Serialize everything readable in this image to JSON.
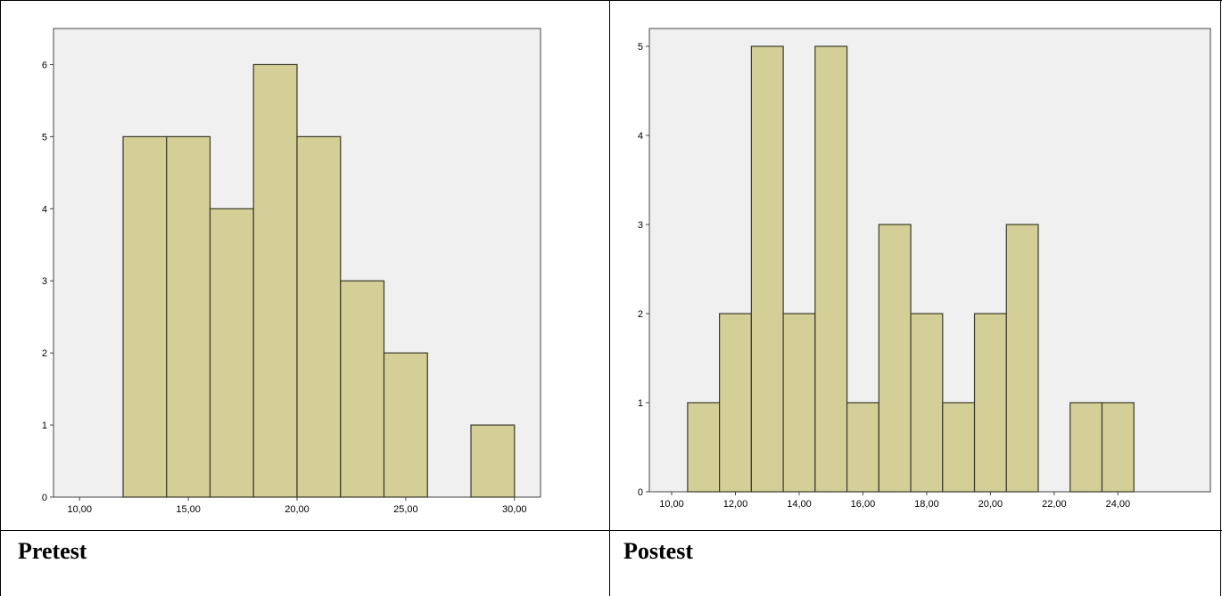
{
  "captions": {
    "left": "Pretest",
    "right": "Postest"
  },
  "colors": {
    "plot_bg": "#f0f0f0",
    "bar_fill": "#d4cf96",
    "bar_stroke": "#3a3a2a",
    "axis": "#444444"
  },
  "chart_data": [
    {
      "type": "bar",
      "name": "pretest-histogram",
      "x_ticks": [
        10,
        15,
        20,
        25,
        30
      ],
      "x_tick_labels": [
        "10,00",
        "15,00",
        "20,00",
        "25,00",
        "30,00"
      ],
      "y_ticks": [
        0,
        1,
        2,
        3,
        4,
        5,
        6
      ],
      "y_tick_labels": [
        "0",
        "1",
        "2",
        "3",
        "4",
        "5",
        "6"
      ],
      "xlim": [
        8.8,
        31.2
      ],
      "ylim": [
        0,
        6.5
      ],
      "bins": [
        {
          "x0": 12,
          "x1": 14,
          "count": 5
        },
        {
          "x0": 14,
          "x1": 16,
          "count": 5
        },
        {
          "x0": 16,
          "x1": 18,
          "count": 4
        },
        {
          "x0": 18,
          "x1": 20,
          "count": 6
        },
        {
          "x0": 20,
          "x1": 22,
          "count": 5
        },
        {
          "x0": 22,
          "x1": 24,
          "count": 3
        },
        {
          "x0": 24,
          "x1": 26,
          "count": 2
        },
        {
          "x0": 28,
          "x1": 30,
          "count": 1
        }
      ],
      "grid": false,
      "legend": "none"
    },
    {
      "type": "bar",
      "name": "postest-histogram",
      "x_ticks": [
        10,
        12,
        14,
        16,
        18,
        20,
        22,
        24
      ],
      "x_tick_labels": [
        "10,00",
        "12,00",
        "14,00",
        "16,00",
        "18,00",
        "20,00",
        "22,00",
        "24,00"
      ],
      "y_ticks": [
        0,
        1,
        2,
        3,
        4,
        5
      ],
      "y_tick_labels": [
        "0",
        "1",
        "2",
        "3",
        "4",
        "5"
      ],
      "xlim": [
        9.3,
        26.9
      ],
      "ylim": [
        0,
        5.2
      ],
      "bins": [
        {
          "x0": 10.5,
          "x1": 11.5,
          "count": 1
        },
        {
          "x0": 11.5,
          "x1": 12.5,
          "count": 2
        },
        {
          "x0": 12.5,
          "x1": 13.5,
          "count": 5
        },
        {
          "x0": 13.5,
          "x1": 14.5,
          "count": 2
        },
        {
          "x0": 14.5,
          "x1": 15.5,
          "count": 5
        },
        {
          "x0": 15.5,
          "x1": 16.5,
          "count": 1
        },
        {
          "x0": 16.5,
          "x1": 17.5,
          "count": 3
        },
        {
          "x0": 17.5,
          "x1": 18.5,
          "count": 2
        },
        {
          "x0": 18.5,
          "x1": 19.5,
          "count": 1
        },
        {
          "x0": 19.5,
          "x1": 20.5,
          "count": 2
        },
        {
          "x0": 20.5,
          "x1": 21.5,
          "count": 3
        },
        {
          "x0": 22.5,
          "x1": 23.5,
          "count": 1
        },
        {
          "x0": 23.5,
          "x1": 24.5,
          "count": 1
        }
      ],
      "grid": false,
      "legend": "none"
    }
  ]
}
